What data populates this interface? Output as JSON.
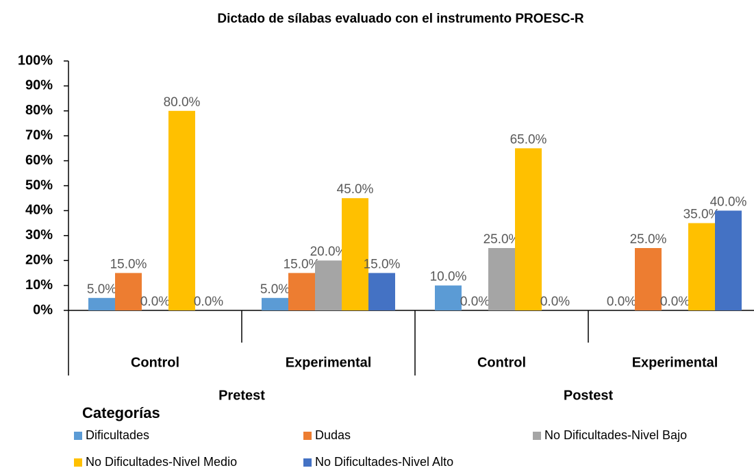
{
  "chart_data": {
    "type": "bar",
    "title": "Dictado de sílabas evaluado con el instrumento PROESC-R",
    "categories": [
      "Control",
      "Experimental",
      "Control",
      "Experimental"
    ],
    "groups": [
      "Pretest",
      "Postest"
    ],
    "legend_title": "Categorías",
    "series": [
      {
        "name": "Dificultades",
        "color": "#5b9bd5",
        "values": [
          5,
          5,
          10,
          0
        ],
        "value_labels": [
          "5.0%",
          "5.0%",
          "10.0%",
          "0.0%"
        ]
      },
      {
        "name": "Dudas",
        "color": "#ed7d31",
        "values": [
          15,
          15,
          0,
          25
        ],
        "value_labels": [
          "15.0%",
          "15.0%",
          "0.0%",
          "25.0%"
        ]
      },
      {
        "name": "No Dificultades-Nivel Bajo",
        "color": "#a5a5a5",
        "values": [
          0,
          20,
          25,
          0
        ],
        "value_labels": [
          "0.0%",
          "20.0%",
          "25.0%",
          "0.0%"
        ]
      },
      {
        "name": "No Dificultades-Nivel Medio",
        "color": "#ffc000",
        "values": [
          80,
          45,
          65,
          35
        ],
        "value_labels": [
          "80.0%",
          "45.0%",
          "65.0%",
          "35.0%"
        ]
      },
      {
        "name": "No Dificultades-Nivel Alto",
        "color": "#4472c4",
        "values": [
          0,
          15,
          0,
          40
        ],
        "value_labels": [
          "0.0%",
          "15.0%",
          "0.0%",
          "40.0%"
        ]
      }
    ],
    "ylim": [
      0,
      100
    ],
    "yticks": [
      {
        "value": 0,
        "label": "0%"
      },
      {
        "value": 10,
        "label": "10%"
      },
      {
        "value": 20,
        "label": "20%"
      },
      {
        "value": 30,
        "label": "30%"
      },
      {
        "value": 40,
        "label": "40%"
      },
      {
        "value": 50,
        "label": "50%"
      },
      {
        "value": 60,
        "label": "60%"
      },
      {
        "value": 70,
        "label": "70%"
      },
      {
        "value": 80,
        "label": "80%"
      },
      {
        "value": 90,
        "label": "90%"
      },
      {
        "value": 100,
        "label": "100%"
      }
    ],
    "grid": false
  }
}
